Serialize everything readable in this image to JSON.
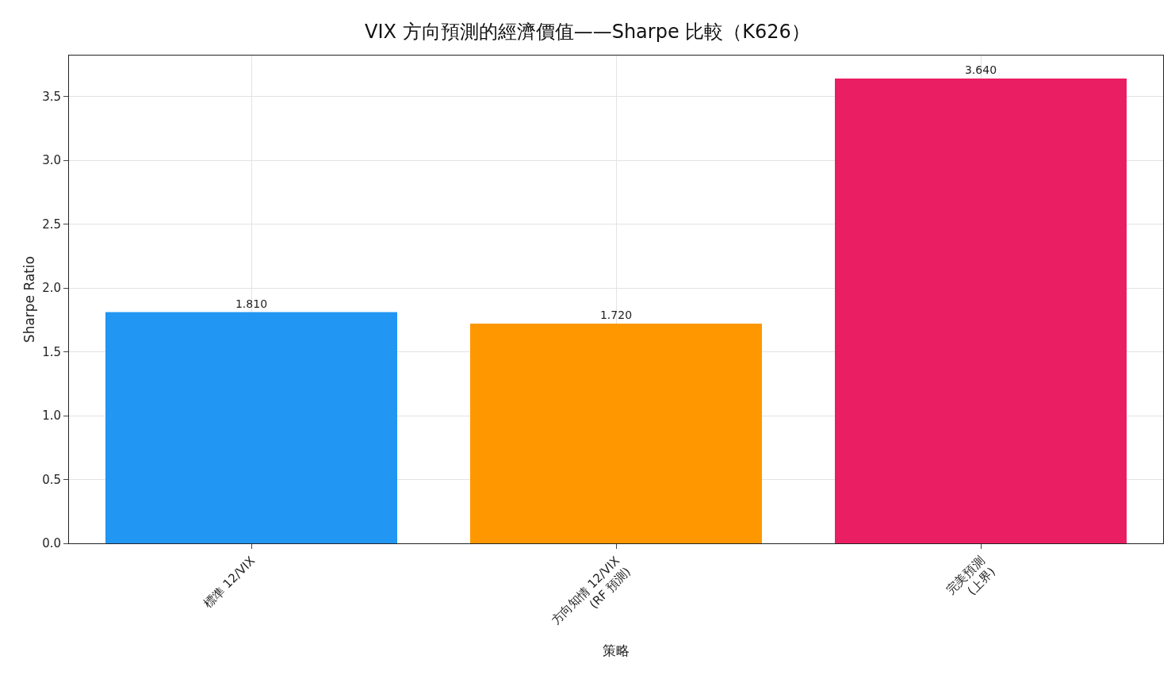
{
  "chart_data": {
    "type": "bar",
    "title": "VIX 方向預測的經濟價值——Sharpe 比較（K626）",
    "xlabel": "策略",
    "ylabel": "Sharpe Ratio",
    "categories": [
      "標準 12/VIX",
      "方向知情 12/VIX\n(RF 預測)",
      "完美預測\n(上界)"
    ],
    "values": [
      1.81,
      1.72,
      3.64
    ],
    "colors": [
      "#2196f3",
      "#ff9800",
      "#e91e63"
    ],
    "value_labels": [
      "1.810",
      "1.720",
      "3.640"
    ],
    "ylim": [
      0,
      3.82
    ],
    "yticks": [
      {
        "value": 0,
        "label": "0.0"
      },
      0.5,
      {
        "value": 1,
        "label": "1.0"
      },
      1.5,
      {
        "value": 2,
        "label": "2.0"
      },
      2.5,
      {
        "value": 3,
        "label": "3.0"
      },
      3.5
    ],
    "grid": true
  }
}
